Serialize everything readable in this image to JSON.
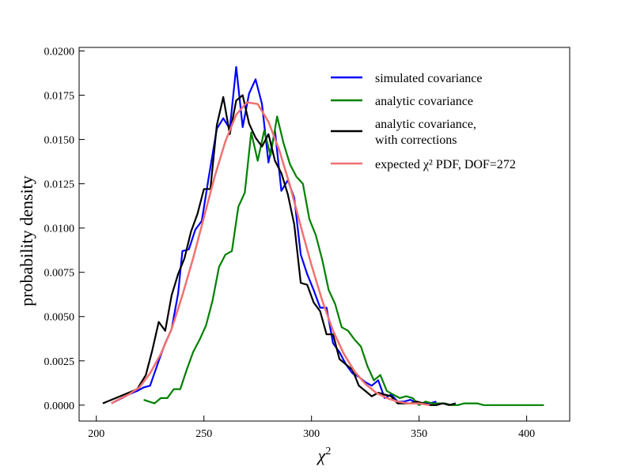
{
  "chart_data": {
    "type": "line",
    "title": "",
    "xlabel": "χ²",
    "ylabel": "probability density",
    "xlim": [
      192,
      420
    ],
    "ylim": [
      -0.0009,
      0.0202
    ],
    "xticks": [
      200,
      250,
      300,
      350,
      400
    ],
    "yticks": [
      0.0,
      0.0025,
      0.005,
      0.0075,
      0.01,
      0.0125,
      0.015,
      0.0175,
      0.02
    ],
    "xtick_labels": [
      "200",
      "250",
      "300",
      "350",
      "400"
    ],
    "ytick_labels": [
      "0.0000",
      "0.0025",
      "0.0050",
      "0.0075",
      "0.0100",
      "0.0125",
      "0.0150",
      "0.0175",
      "0.0200"
    ],
    "legend_position": "top-right",
    "series": [
      {
        "name": "simulated covariance",
        "legend_label": "simulated covariance",
        "color": "#0000ff",
        "x": [
          207,
          212,
          215,
          219,
          222,
          225,
          229,
          232,
          235,
          238,
          240,
          243,
          246,
          249,
          252,
          256,
          259,
          262,
          265,
          268,
          271,
          274,
          277,
          280,
          283,
          286,
          289,
          292,
          295,
          298,
          301,
          304,
          307,
          310,
          313,
          316,
          319,
          322,
          325,
          328,
          331,
          334,
          337,
          340,
          343,
          346,
          349,
          352,
          355,
          358
        ],
        "y": [
          0.0001,
          0.0004,
          0.0006,
          0.0008,
          0.001,
          0.0011,
          0.0025,
          0.0035,
          0.0043,
          0.0063,
          0.0087,
          0.0088,
          0.0099,
          0.0104,
          0.0127,
          0.0156,
          0.0162,
          0.0156,
          0.0191,
          0.0157,
          0.0176,
          0.0184,
          0.017,
          0.0137,
          0.0155,
          0.0121,
          0.0127,
          0.0117,
          0.0085,
          0.0074,
          0.0065,
          0.0055,
          0.0055,
          0.0035,
          0.003,
          0.0023,
          0.0018,
          0.0016,
          0.0013,
          0.0011,
          0.0014,
          0.0004,
          0.0006,
          0.0002,
          0.0002,
          0.0003,
          0.0001,
          0.0001,
          0.0001,
          0.0002
        ]
      },
      {
        "name": "analytic covariance",
        "legend_label": "analytic covariance",
        "color": "#008000",
        "x": [
          222,
          227,
          230,
          233,
          236,
          239,
          242,
          245,
          248,
          251,
          254,
          257,
          260,
          263,
          266,
          269,
          272,
          275,
          278,
          281,
          284,
          287,
          290,
          293,
          296,
          299,
          302,
          305,
          308,
          311,
          314,
          317,
          320,
          323,
          326,
          329,
          332,
          335,
          338,
          341,
          344,
          347,
          350,
          353,
          356,
          359,
          362,
          365,
          368,
          371,
          374,
          377,
          380,
          383,
          386,
          389,
          392,
          395,
          398,
          401,
          404,
          408
        ],
        "y": [
          0.0003,
          0.0001,
          0.0004,
          0.0004,
          0.0009,
          0.0009,
          0.002,
          0.003,
          0.0037,
          0.0045,
          0.0059,
          0.0078,
          0.0085,
          0.0087,
          0.0112,
          0.012,
          0.0154,
          0.0138,
          0.0155,
          0.0141,
          0.0163,
          0.0148,
          0.0136,
          0.0129,
          0.0125,
          0.0105,
          0.0096,
          0.0082,
          0.0065,
          0.0057,
          0.0044,
          0.0042,
          0.0037,
          0.0033,
          0.0022,
          0.0014,
          0.0017,
          0.0008,
          0.0006,
          0.0004,
          0.0005,
          0.0004,
          0.0,
          0.0002,
          0.0001,
          0.0001,
          0.0001,
          0.0,
          0.0,
          0.0001,
          0.0001,
          0.0001,
          0.0,
          0.0,
          0.0,
          0.0,
          0.0,
          0.0,
          0.0,
          0.0,
          0.0,
          0.0
        ]
      },
      {
        "name": "analytic covariance, with corrections",
        "legend_label_line1": "analytic covariance,",
        "legend_label_line2": "with corrections",
        "color": "#000000",
        "x": [
          203,
          207,
          211,
          215,
          219,
          223,
          226,
          229,
          232,
          235,
          238,
          241,
          244,
          247,
          250,
          253,
          256,
          259,
          262,
          265,
          268,
          271,
          274,
          277,
          280,
          283,
          286,
          289,
          292,
          295,
          298,
          301,
          304,
          307,
          310,
          313,
          316,
          319,
          322,
          325,
          328,
          331,
          334,
          337,
          340,
          343,
          346,
          349,
          352,
          355,
          358,
          361,
          364,
          367
        ],
        "y": [
          0.0001,
          0.0003,
          0.0005,
          0.0007,
          0.0009,
          0.0017,
          0.0031,
          0.0047,
          0.0042,
          0.0062,
          0.0074,
          0.0083,
          0.0098,
          0.0108,
          0.0122,
          0.0122,
          0.0158,
          0.0174,
          0.0153,
          0.0172,
          0.0175,
          0.0159,
          0.0151,
          0.0146,
          0.0153,
          0.0138,
          0.0131,
          0.0119,
          0.0102,
          0.0069,
          0.0068,
          0.0058,
          0.0053,
          0.004,
          0.004,
          0.0026,
          0.0023,
          0.002,
          0.0011,
          0.0008,
          0.0005,
          0.0007,
          0.0006,
          0.0005,
          0.0001,
          0.0001,
          0.0001,
          0.0002,
          0.0001,
          0.0,
          0.0,
          0.0001,
          0.0,
          0.0001
        ]
      },
      {
        "name": "expected χ² PDF, DOF=272",
        "legend_label": "expected χ² PDF, DOF=272",
        "color": "#f07070",
        "dof": 272,
        "x": [
          207,
          210,
          215,
          220,
          225,
          230,
          235,
          240,
          245,
          250,
          255,
          260,
          265,
          270,
          275,
          280,
          285,
          290,
          295,
          300,
          305,
          310,
          315,
          320,
          325,
          330,
          335,
          340,
          345,
          350,
          355
        ],
        "y": [
          0.0001,
          0.0003,
          0.0006,
          0.001,
          0.0018,
          0.0029,
          0.0043,
          0.0062,
          0.0083,
          0.0106,
          0.0129,
          0.0149,
          0.0164,
          0.0171,
          0.017,
          0.016,
          0.0144,
          0.0124,
          0.0101,
          0.0079,
          0.0059,
          0.0042,
          0.0029,
          0.0019,
          0.0012,
          0.0007,
          0.0004,
          0.0002,
          0.0001,
          0.0001,
          0.0
        ]
      }
    ]
  }
}
